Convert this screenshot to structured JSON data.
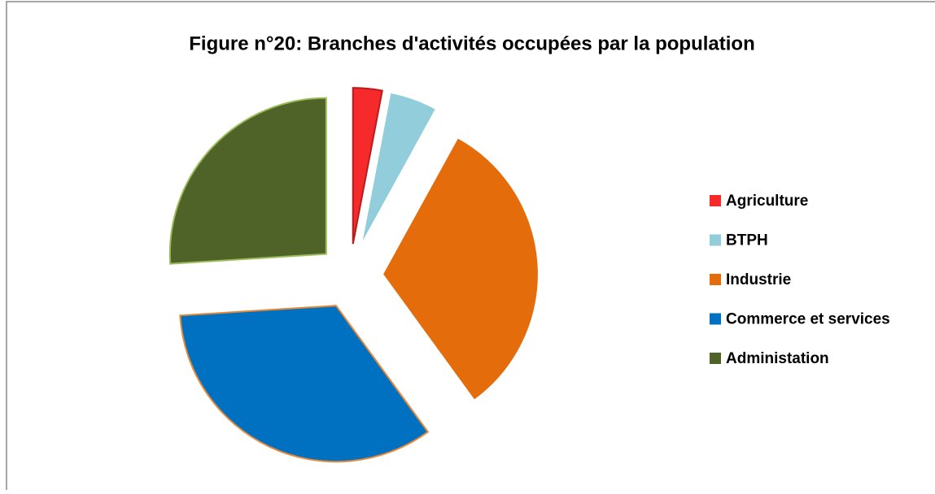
{
  "chart_data": {
    "type": "pie",
    "title": "Figure n°20: Branches d'activités occupées par la population",
    "categories": [
      "Agriculture",
      "BTPH",
      "Industrie",
      "Commerce et services",
      "Administation"
    ],
    "values": [
      3,
      5,
      32,
      34,
      26
    ],
    "colors": [
      "#f62a2a",
      "#92cddc",
      "#e46c0a",
      "#0070c0",
      "#4f6228"
    ],
    "legend": "right"
  }
}
